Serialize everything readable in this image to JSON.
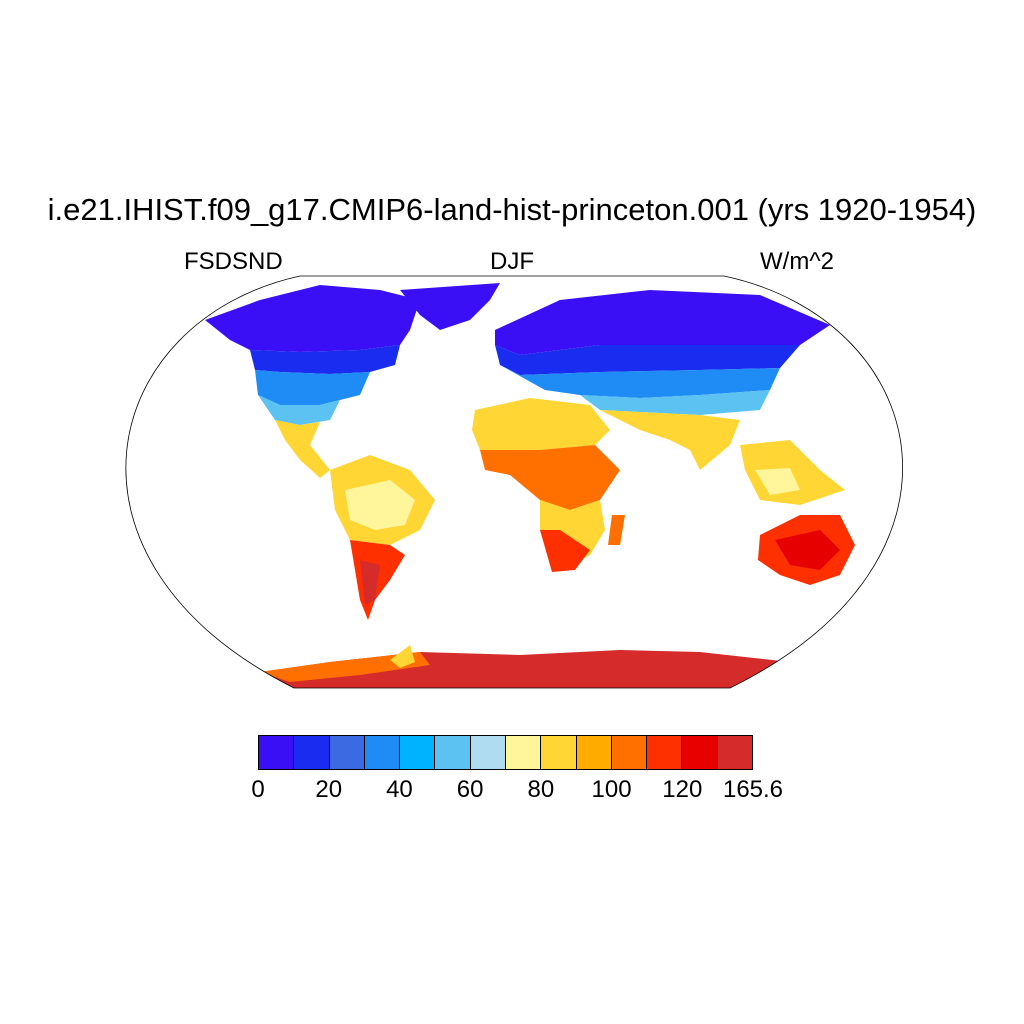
{
  "header": {
    "title": "i.e21.IHIST.f09_g17.CMIP6-land-hist-princeton.001 (yrs 1920-1954)",
    "left_label": "FSDSND",
    "center_label": "DJF",
    "right_label": "W/m^2"
  },
  "map": {
    "projection": "robinson",
    "variable": "FSDSND",
    "season": "DJF",
    "units": "W/m^2"
  },
  "colorbar": {
    "colors": [
      "#3b0ff5",
      "#1a2cf0",
      "#3c6ae2",
      "#1f8cf5",
      "#00b3ff",
      "#5bc2f2",
      "#b0dcf2",
      "#fff59a",
      "#ffd633",
      "#ffab00",
      "#ff7000",
      "#ff3000",
      "#e60000",
      "#d62b2b"
    ],
    "labels": [
      "0",
      "20",
      "40",
      "60",
      "80",
      "100",
      "120",
      "165.6"
    ]
  }
}
